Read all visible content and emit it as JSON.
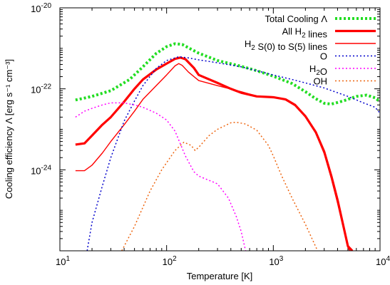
{
  "chart_data": {
    "type": "line",
    "xlabel": "Temperature [K]",
    "ylabel": "Cooling efficiency Λ [erg s⁻¹ cm⁻³]",
    "xscale": "log",
    "yscale": "log",
    "xlim": [
      10,
      10000
    ],
    "ylim": [
      1e-26,
      1e-20
    ],
    "x_ticks": [
      {
        "value": 10,
        "label": "10",
        "exp": "1"
      },
      {
        "value": 100,
        "label": "10",
        "exp": "2"
      },
      {
        "value": 1000,
        "label": "10",
        "exp": "3"
      },
      {
        "value": 10000,
        "label": "10",
        "exp": "4"
      }
    ],
    "y_ticks": [
      {
        "value": 1e-24,
        "label": "10",
        "exp": "-24"
      },
      {
        "value": 1e-22,
        "label": "10",
        "exp": "-22"
      },
      {
        "value": 1e-20,
        "label": "10",
        "exp": "-20"
      }
    ],
    "legend_position": "top-right",
    "series": [
      {
        "name": "Total Cooling Λ",
        "color": "#22dd22",
        "style": "dotted-thick",
        "points": [
          [
            14,
            5.3e-23
          ],
          [
            20,
            6.5e-23
          ],
          [
            30,
            9e-23
          ],
          [
            45,
            1.7e-22
          ],
          [
            60,
            3.5e-22
          ],
          [
            80,
            7.5e-22
          ],
          [
            100,
            1.1e-21
          ],
          [
            120,
            1.3e-21
          ],
          [
            140,
            1.25e-21
          ],
          [
            170,
            9.5e-22
          ],
          [
            200,
            7.6e-22
          ],
          [
            300,
            5e-22
          ],
          [
            500,
            3.6e-22
          ],
          [
            700,
            2.8e-22
          ],
          [
            1000,
            2.05e-22
          ],
          [
            1500,
            1.35e-22
          ],
          [
            2000,
            8.5e-23
          ],
          [
            2500,
            5.7e-23
          ],
          [
            3000,
            4.4e-23
          ],
          [
            3500,
            4.2e-23
          ],
          [
            4500,
            5e-23
          ],
          [
            6000,
            6.5e-23
          ],
          [
            7500,
            7e-23
          ],
          [
            9000,
            6e-23
          ],
          [
            10000,
            4.8e-23
          ]
        ]
      },
      {
        "name": "All H₂ lines",
        "color": "#ff0000",
        "style": "solid-thick",
        "points": [
          [
            14,
            4.2e-24
          ],
          [
            17,
            4.5e-24
          ],
          [
            20,
            7e-24
          ],
          [
            25,
            1.3e-23
          ],
          [
            30,
            2e-23
          ],
          [
            40,
            4.8e-23
          ],
          [
            50,
            1e-22
          ],
          [
            60,
            1.7e-22
          ],
          [
            80,
            3e-22
          ],
          [
            100,
            4.2e-22
          ],
          [
            120,
            5.5e-22
          ],
          [
            135,
            5.9e-22
          ],
          [
            150,
            5.4e-22
          ],
          [
            180,
            3.3e-22
          ],
          [
            200,
            2.2e-22
          ],
          [
            300,
            1.4e-22
          ],
          [
            400,
            1e-22
          ],
          [
            500,
            8e-23
          ],
          [
            700,
            6.5e-23
          ],
          [
            1000,
            6.2e-23
          ],
          [
            1300,
            5.5e-23
          ],
          [
            1600,
            4e-23
          ],
          [
            2000,
            2.1e-23
          ],
          [
            2500,
            8.5e-24
          ],
          [
            3000,
            2.8e-24
          ],
          [
            3500,
            7e-25
          ],
          [
            4000,
            1.8e-25
          ],
          [
            4500,
            4.5e-26
          ],
          [
            5000,
            1.3e-26
          ],
          [
            5500,
            1e-26
          ]
        ]
      },
      {
        "name": "H₂ S(0) to S(5) lines",
        "color": "#ff0000",
        "style": "solid-thin",
        "points": [
          [
            14,
            9.5e-25
          ],
          [
            17,
            9.5e-25
          ],
          [
            20,
            1.3e-24
          ],
          [
            25,
            2.6e-24
          ],
          [
            30,
            5e-24
          ],
          [
            40,
            1.3e-23
          ],
          [
            50,
            2.8e-23
          ],
          [
            60,
            5.5e-23
          ],
          [
            80,
            1.2e-22
          ],
          [
            100,
            2.2e-22
          ],
          [
            120,
            3.7e-22
          ],
          [
            130,
            4.2e-22
          ],
          [
            140,
            3.8e-22
          ],
          [
            160,
            2.6e-22
          ],
          [
            200,
            1.6e-22
          ],
          [
            300,
            1.2e-22
          ],
          [
            500,
            8.5e-23
          ],
          [
            700,
            6.6e-23
          ],
          [
            1000,
            6.2e-23
          ],
          [
            1300,
            5.3e-23
          ],
          [
            1600,
            3.8e-23
          ],
          [
            2000,
            2e-23
          ],
          [
            2500,
            8e-24
          ],
          [
            3000,
            2.5e-24
          ],
          [
            3500,
            6e-25
          ],
          [
            4000,
            1.5e-25
          ],
          [
            4500,
            4e-26
          ],
          [
            5000,
            1.2e-26
          ],
          [
            5200,
            1e-26
          ]
        ]
      },
      {
        "name": "O",
        "color": "#0000cc",
        "style": "dotted",
        "points": [
          [
            18,
            1e-26
          ],
          [
            20,
            5e-26
          ],
          [
            25,
            4e-25
          ],
          [
            30,
            2e-24
          ],
          [
            40,
            1.6e-23
          ],
          [
            50,
            5e-23
          ],
          [
            60,
            1.2e-22
          ],
          [
            80,
            3.2e-22
          ],
          [
            100,
            5e-22
          ],
          [
            130,
            6.2e-22
          ],
          [
            160,
            5.8e-22
          ],
          [
            200,
            5.2e-22
          ],
          [
            300,
            4.4e-22
          ],
          [
            500,
            3.5e-22
          ],
          [
            700,
            2.8e-22
          ],
          [
            1000,
            2.2e-22
          ],
          [
            1500,
            1.7e-22
          ],
          [
            2000,
            1.4e-22
          ],
          [
            3000,
            1.05e-22
          ],
          [
            5000,
            6.5e-23
          ],
          [
            7000,
            4.5e-23
          ],
          [
            9000,
            3.5e-23
          ],
          [
            10000,
            2.5e-23
          ]
        ]
      },
      {
        "name": "H₂O",
        "color": "#ff00ff",
        "style": "dotted",
        "points": [
          [
            14,
            2e-23
          ],
          [
            17,
            2.8e-23
          ],
          [
            20,
            3.3e-23
          ],
          [
            25,
            4e-23
          ],
          [
            30,
            4.5e-23
          ],
          [
            40,
            4.5e-23
          ],
          [
            50,
            4e-23
          ],
          [
            60,
            3.5e-23
          ],
          [
            80,
            2.5e-23
          ],
          [
            100,
            1.7e-23
          ],
          [
            120,
            9e-24
          ],
          [
            150,
            2.2e-24
          ],
          [
            180,
            9e-25
          ],
          [
            200,
            7e-25
          ],
          [
            250,
            5.5e-25
          ],
          [
            300,
            4.5e-25
          ],
          [
            380,
            2e-25
          ],
          [
            450,
            7e-26
          ],
          [
            500,
            3e-26
          ],
          [
            550,
            1e-26
          ]
        ]
      },
      {
        "name": "OH",
        "color": "#ee6611",
        "style": "dotted",
        "points": [
          [
            38,
            1e-26
          ],
          [
            50,
            4e-26
          ],
          [
            70,
            3e-25
          ],
          [
            90,
            1e-24
          ],
          [
            120,
            3e-24
          ],
          [
            145,
            4.8e-24
          ],
          [
            170,
            4e-24
          ],
          [
            185,
            3e-24
          ],
          [
            200,
            3.6e-24
          ],
          [
            250,
            7e-24
          ],
          [
            300,
            1e-23
          ],
          [
            400,
            1.45e-23
          ],
          [
            450,
            1.5e-23
          ],
          [
            550,
            1.35e-23
          ],
          [
            700,
            9.5e-24
          ],
          [
            900,
            4e-24
          ],
          [
            1000,
            2.2e-24
          ],
          [
            1200,
            7e-25
          ],
          [
            1500,
            2e-25
          ],
          [
            2000,
            4.5e-26
          ],
          [
            2600,
            1e-26
          ]
        ]
      }
    ]
  }
}
